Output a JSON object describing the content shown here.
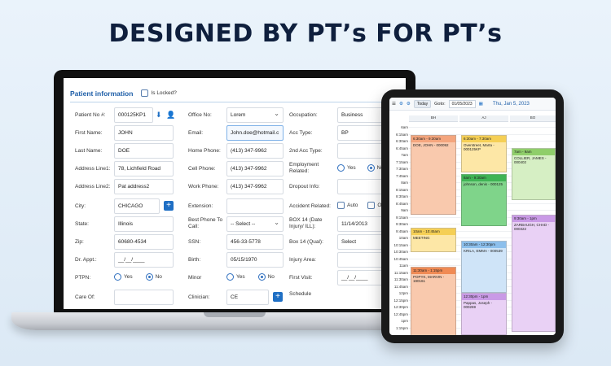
{
  "headline": "DESIGNED BY PT’s FOR PT’s",
  "form": {
    "title": "Patient information",
    "lock_label": "Is Locked?",
    "col1": [
      {
        "label": "Patient No #:",
        "value": "000125KP1"
      },
      {
        "label": "First Name:",
        "value": "JOHN"
      },
      {
        "label": "Last Name:",
        "value": "DOE"
      },
      {
        "label": "Address Line1:",
        "value": "78, Lichfield Road"
      },
      {
        "label": "Address Line2:",
        "value": "Pat address2"
      },
      {
        "label": "City:",
        "value": "CHICAGO"
      },
      {
        "label": "State:",
        "value": "Illinois"
      },
      {
        "label": "Zip:",
        "value": "60680-4534"
      },
      {
        "label": "Dr. Appt.:",
        "value": "__/__/____"
      },
      {
        "label": "PTPN:",
        "yes": "Yes",
        "no": "No"
      },
      {
        "label": "Care Of:",
        "value": ""
      }
    ],
    "col2": [
      {
        "label": "Office No:",
        "value": "Lorem"
      },
      {
        "label": "Email:",
        "value": "John.doe@hotmail.c"
      },
      {
        "label": "Home Phone:",
        "value": "(413) 347-9962"
      },
      {
        "label": "Cell Phone:",
        "value": "(413) 347-9962"
      },
      {
        "label": "Work Phone:",
        "value": "(413) 347-9962"
      },
      {
        "label": "Extension:",
        "value": ""
      },
      {
        "label": "Best Phone To Call:",
        "value": "-- Select --"
      },
      {
        "label": "SSN:",
        "value": "456-33-5778"
      },
      {
        "label": "Birth:",
        "value": "05/15/1970"
      },
      {
        "label": "Minor",
        "yes": "Yes",
        "no": "No"
      },
      {
        "label": "Clinician:",
        "value": "CE"
      }
    ],
    "col3": [
      {
        "label": "Occupation:",
        "value": "Business"
      },
      {
        "label": "Acc Type:",
        "value": "BP"
      },
      {
        "label": "2nd Acc Type:",
        "value": ""
      },
      {
        "label": "Employment Related:",
        "yes": "Yes",
        "no": "No"
      },
      {
        "label": "Dropout Info:",
        "value": ""
      },
      {
        "label": "Accident Related:",
        "auto": "Auto",
        "other": "Oth"
      },
      {
        "label": "BOX 14 (Date Injury/ ILL):",
        "value": "11/14/2013"
      },
      {
        "label": "Box 14 (Qual):",
        "value": "Select"
      },
      {
        "label": "Injury Area:",
        "value": ""
      },
      {
        "label": "First Visit:",
        "value": "__/__/____"
      },
      {
        "label": "Schedule",
        "value": ""
      }
    ]
  },
  "scheduler": {
    "today_label": "Today",
    "goto_label": "Goto:",
    "goto_value": "01/05/2023",
    "day_label": "Thu, Jan 5, 2023",
    "columns": [
      "BH",
      "AJ",
      "BO"
    ],
    "times": [
      "6am",
      "6:15am",
      "6:30am",
      "6:45am",
      "7am",
      "7:15am",
      "7:30am",
      "7:45am",
      "8am",
      "8:15am",
      "8:30am",
      "8:45am",
      "9am",
      "9:15am",
      "9:30am",
      "9:45am",
      "10am",
      "10:15am",
      "10:30am",
      "10:45am",
      "11am",
      "11:15am",
      "11:30am",
      "11:45am",
      "12pm",
      "12:15pm",
      "12:30pm",
      "12:45pm",
      "1pm",
      "1:15pm"
    ],
    "appointments": [
      {
        "time": "6:30am - 9:30am",
        "name": "DOE, JOHN - 000092",
        "color": "#f9c9ad",
        "hdr": "#f4a57d"
      },
      {
        "time": "6:30am - 7:30am",
        "name": "Overstreet, Marta - 000125KP",
        "color": "#fde7a6",
        "hdr": "#f5cf55"
      },
      {
        "time": "7am - 9am",
        "name": "COLLIER, JAMES - 000402",
        "color": "#d6efc4",
        "hdr": "#8fce6a"
      },
      {
        "time": "8am - 9:30am",
        "name": "johnson, denis - 000125",
        "color": "#7fd48a",
        "hdr": "#3fb455"
      },
      {
        "time": "9:30am - 1pm",
        "name": "ZARBAUGH, CHAD - 000322",
        "color": "#e9d1f5",
        "hdr": "#c99ae6"
      },
      {
        "time": "10am - 10:45am",
        "name": "MEETING",
        "color": "#fde7a6",
        "hdr": "#f5cf55"
      },
      {
        "time": "10:30am - 12:30pm",
        "name": "KRILA, EMMA - 000539",
        "color": "#cfe4f8",
        "hdr": "#8cbfec"
      },
      {
        "time": "11:30am - 1:15pm",
        "name": "POPYK, MARVIN - 190161",
        "color": "#f9c9ad",
        "hdr": "#f08a54"
      },
      {
        "time": "12:30pm - 1pm",
        "name": "Pappas, Joseph - 000269",
        "color": "#e9d1f5",
        "hdr": "#c99ae6"
      }
    ]
  }
}
